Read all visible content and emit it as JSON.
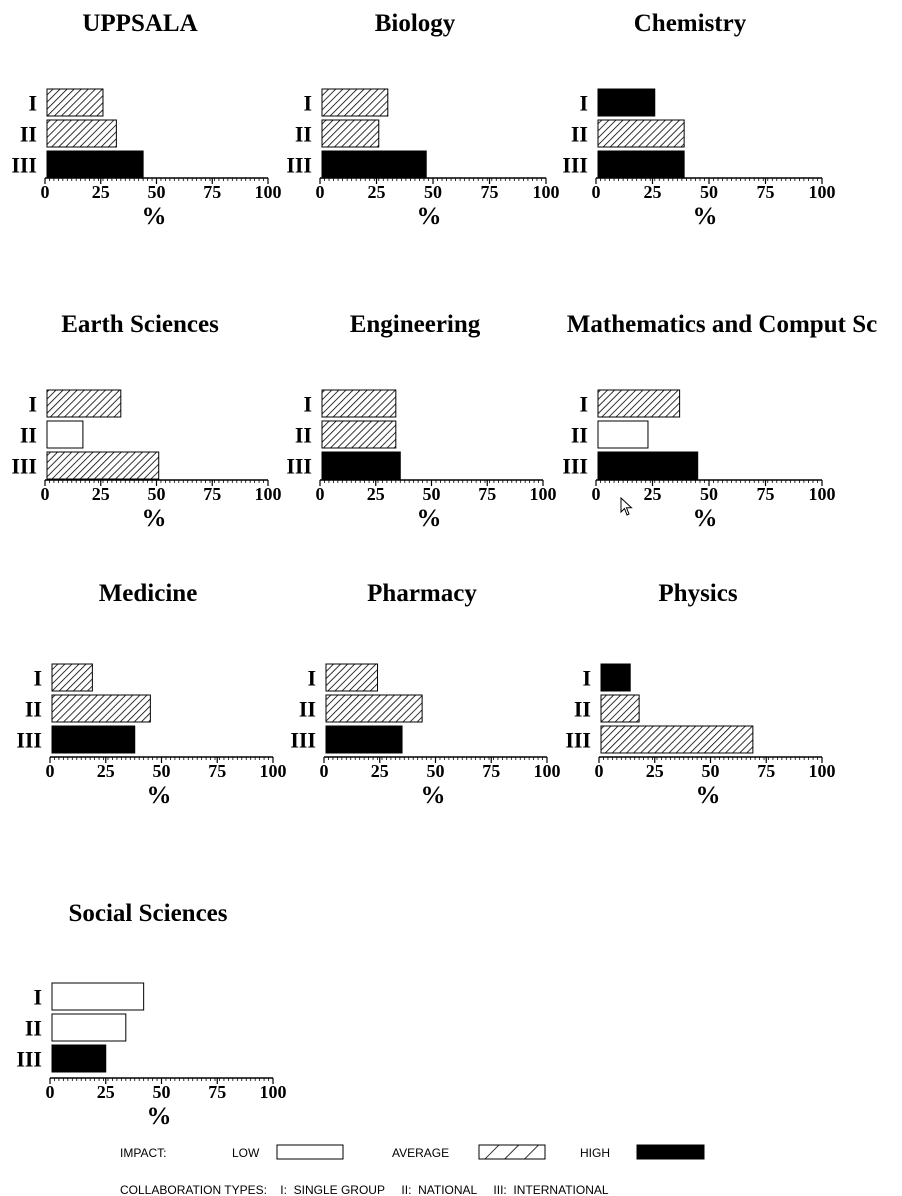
{
  "chart_data": [
    {
      "type": "bar",
      "orientation": "horizontal",
      "title": "UPPSALA",
      "categories": [
        "I",
        "II",
        "III"
      ],
      "values": [
        26,
        32,
        44
      ],
      "impact": [
        "average",
        "average",
        "high"
      ],
      "xlim": [
        0,
        100
      ],
      "xticks": [
        "0",
        "25",
        "50",
        "75",
        "100"
      ],
      "xlabel": "%"
    },
    {
      "type": "bar",
      "orientation": "horizontal",
      "title": "Biology",
      "categories": [
        "I",
        "II",
        "III"
      ],
      "values": [
        30,
        26,
        47
      ],
      "impact": [
        "average",
        "average",
        "high"
      ],
      "xlim": [
        0,
        100
      ],
      "xticks": [
        "0",
        "25",
        "50",
        "75",
        "100"
      ],
      "xlabel": "%"
    },
    {
      "type": "bar",
      "orientation": "horizontal",
      "title": "Chemistry",
      "categories": [
        "I",
        "II",
        "III"
      ],
      "values": [
        26,
        39,
        39
      ],
      "impact": [
        "high",
        "average",
        "high"
      ],
      "xlim": [
        0,
        100
      ],
      "xticks": [
        "0",
        "25",
        "50",
        "75",
        "100"
      ],
      "xlabel": "%"
    },
    {
      "type": "bar",
      "orientation": "horizontal",
      "title": "Earth Sciences",
      "categories": [
        "I",
        "II",
        "III"
      ],
      "values": [
        34,
        17,
        51
      ],
      "impact": [
        "average",
        "low",
        "average"
      ],
      "xlim": [
        0,
        100
      ],
      "xticks": [
        "0",
        "25",
        "50",
        "75",
        "100"
      ],
      "xlabel": "%"
    },
    {
      "type": "bar",
      "orientation": "horizontal",
      "title": "Engineering",
      "categories": [
        "I",
        "II",
        "III"
      ],
      "values": [
        34,
        34,
        36
      ],
      "impact": [
        "average",
        "average",
        "high"
      ],
      "xlim": [
        0,
        100
      ],
      "xticks": [
        "0",
        "25",
        "50",
        "75",
        "100"
      ],
      "xlabel": "%"
    },
    {
      "type": "bar",
      "orientation": "horizontal",
      "title": "Mathematics and Comput Sc",
      "categories": [
        "I",
        "II",
        "III"
      ],
      "values": [
        37,
        23,
        45
      ],
      "impact": [
        "average",
        "low",
        "high"
      ],
      "xlim": [
        0,
        100
      ],
      "xticks": [
        "0",
        "25",
        "50",
        "75",
        "100"
      ],
      "xlabel": "%"
    },
    {
      "type": "bar",
      "orientation": "horizontal",
      "title": "Medicine",
      "categories": [
        "I",
        "II",
        "III"
      ],
      "values": [
        19,
        45,
        38
      ],
      "impact": [
        "average",
        "average",
        "high"
      ],
      "xlim": [
        0,
        100
      ],
      "xticks": [
        "0",
        "25",
        "50",
        "75",
        "100"
      ],
      "xlabel": "%"
    },
    {
      "type": "bar",
      "orientation": "horizontal",
      "title": "Pharmacy",
      "categories": [
        "I",
        "II",
        "III"
      ],
      "values": [
        24,
        44,
        35
      ],
      "impact": [
        "average",
        "average",
        "high"
      ],
      "xlim": [
        0,
        100
      ],
      "xticks": [
        "0",
        "25",
        "50",
        "75",
        "100"
      ],
      "xlabel": "%"
    },
    {
      "type": "bar",
      "orientation": "horizontal",
      "title": "Physics",
      "categories": [
        "I",
        "II",
        "III"
      ],
      "values": [
        14,
        18,
        69
      ],
      "impact": [
        "high",
        "average",
        "average"
      ],
      "xlim": [
        0,
        100
      ],
      "xticks": [
        "0",
        "25",
        "50",
        "75",
        "100"
      ],
      "xlabel": "%"
    },
    {
      "type": "bar",
      "orientation": "horizontal",
      "title": "Social Sciences",
      "categories": [
        "I",
        "II",
        "III"
      ],
      "values": [
        42,
        34,
        25
      ],
      "impact": [
        "low",
        "low",
        "high"
      ],
      "xlim": [
        0,
        100
      ],
      "xticks": [
        "0",
        "25",
        "50",
        "75",
        "100"
      ],
      "xlabel": "%"
    }
  ],
  "legend": {
    "impact_label": "IMPACT:",
    "low_label": "LOW",
    "average_label": "AVERAGE",
    "high_label": "HIGH",
    "collab_text": "COLLABORATION TYPES:    I:  SINGLE GROUP     II:  NATIONAL     III:  INTERNATIONAL"
  },
  "colors": {
    "high": "#000000",
    "low": "#ffffff",
    "hatch": "#000000",
    "axis": "#000000"
  },
  "icons": {
    "cursor": "mouse-pointer-icon"
  }
}
